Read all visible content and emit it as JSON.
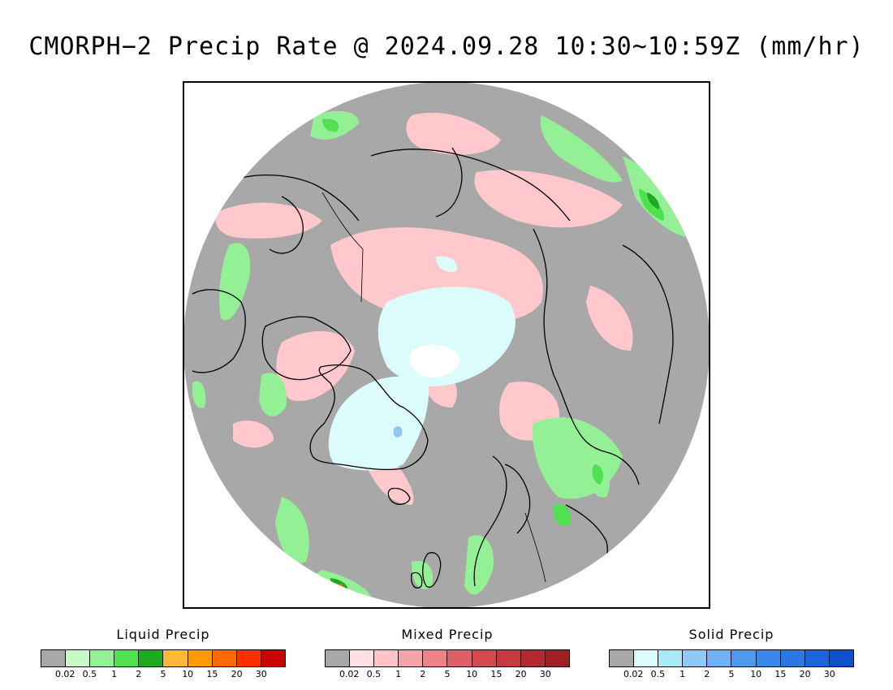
{
  "title": "CMORPH−2 Precip Rate @ 2024.09.28 10:30~10:59Z (mm/hr)",
  "map": {
    "projection": "north-polar-stereographic",
    "background_color": "#a8a8a8",
    "coastline_color": "#000000"
  },
  "legends": [
    {
      "name": "liquid",
      "title": "Liquid Precip",
      "colors": [
        "#a8a8a8",
        "#c8fac8",
        "#94f094",
        "#50e050",
        "#20aa20",
        "#ffb838",
        "#ff9a00",
        "#ff6a00",
        "#ff3000",
        "#cc0000"
      ],
      "ticks": [
        "0.02",
        "0.5",
        "1",
        "2",
        "5",
        "10",
        "15",
        "20",
        "30"
      ]
    },
    {
      "name": "mixed",
      "title": "Mixed Precip",
      "colors": [
        "#a8a8a8",
        "#ffe0e4",
        "#ffc4c8",
        "#f4a4a8",
        "#ec8488",
        "#dc6068",
        "#d04a50",
        "#c43a40",
        "#b02a30",
        "#9c2024"
      ],
      "ticks": [
        "0.02",
        "0.5",
        "1",
        "2",
        "5",
        "10",
        "15",
        "20",
        "30"
      ]
    },
    {
      "name": "solid",
      "title": "Solid Precip",
      "colors": [
        "#a8a8a8",
        "#dcfcfc",
        "#a8eaf8",
        "#90c8f8",
        "#70b0f4",
        "#5098ec",
        "#3c88e8",
        "#2c78e0",
        "#1c64d8",
        "#1050c8"
      ],
      "ticks": [
        "0.02",
        "0.5",
        "1",
        "2",
        "5",
        "10",
        "15",
        "20",
        "30"
      ]
    }
  ]
}
